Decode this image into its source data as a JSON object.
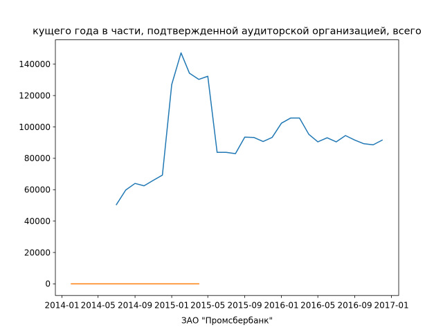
{
  "chart_data": {
    "type": "line",
    "title": "кущего года в части, подтвержденной аудиторской организацией, всего",
    "xlabel": "ЗАО \"Промсбербанк\"",
    "ylabel": "",
    "x_axis": "date",
    "xlim": [
      "2013-12-10",
      "2017-01-25"
    ],
    "ylim": [
      -7400,
      155500
    ],
    "x_ticks": [
      {
        "date": "2014-01-01",
        "label": "2014-01"
      },
      {
        "date": "2014-05-01",
        "label": "2014-05"
      },
      {
        "date": "2014-09-01",
        "label": "2014-09"
      },
      {
        "date": "2015-01-01",
        "label": "2015-01"
      },
      {
        "date": "2015-05-01",
        "label": "2015-05"
      },
      {
        "date": "2015-09-01",
        "label": "2015-09"
      },
      {
        "date": "2016-01-01",
        "label": "2016-01"
      },
      {
        "date": "2016-05-01",
        "label": "2016-05"
      },
      {
        "date": "2016-09-01",
        "label": "2016-09"
      },
      {
        "date": "2017-01-01",
        "label": "2017-01"
      }
    ],
    "y_ticks": [
      0,
      20000,
      40000,
      60000,
      80000,
      100000,
      120000,
      140000
    ],
    "grid": false,
    "series": [
      {
        "name": "",
        "color": "#1f77b4",
        "points": [
          {
            "x": "2014-07-01",
            "y": 50500
          },
          {
            "x": "2014-08-01",
            "y": 59800
          },
          {
            "x": "2014-09-01",
            "y": 64000
          },
          {
            "x": "2014-10-01",
            "y": 62500
          },
          {
            "x": "2014-11-01",
            "y": 66000
          },
          {
            "x": "2014-12-01",
            "y": 69300
          },
          {
            "x": "2015-01-01",
            "y": 127000
          },
          {
            "x": "2015-02-01",
            "y": 147200
          },
          {
            "x": "2015-03-01",
            "y": 134200
          },
          {
            "x": "2015-04-01",
            "y": 130300
          },
          {
            "x": "2015-05-01",
            "y": 132300
          },
          {
            "x": "2015-06-01",
            "y": 83800
          },
          {
            "x": "2015-07-01",
            "y": 83800
          },
          {
            "x": "2015-08-01",
            "y": 83000
          },
          {
            "x": "2015-09-01",
            "y": 93500
          },
          {
            "x": "2015-10-01",
            "y": 93300
          },
          {
            "x": "2015-11-01",
            "y": 90700
          },
          {
            "x": "2015-12-01",
            "y": 93300
          },
          {
            "x": "2016-01-01",
            "y": 102400
          },
          {
            "x": "2016-02-01",
            "y": 105700
          },
          {
            "x": "2016-03-01",
            "y": 105700
          },
          {
            "x": "2016-04-01",
            "y": 95300
          },
          {
            "x": "2016-05-01",
            "y": 90500
          },
          {
            "x": "2016-06-01",
            "y": 93100
          },
          {
            "x": "2016-07-01",
            "y": 90500
          },
          {
            "x": "2016-08-01",
            "y": 94500
          },
          {
            "x": "2016-09-01",
            "y": 91600
          },
          {
            "x": "2016-10-01",
            "y": 89300
          },
          {
            "x": "2016-11-01",
            "y": 88600
          },
          {
            "x": "2016-12-01",
            "y": 91600
          }
        ]
      },
      {
        "name": "",
        "color": "#ff7f0e",
        "points": [
          {
            "x": "2014-02-01",
            "y": 0
          },
          {
            "x": "2014-03-01",
            "y": 0
          },
          {
            "x": "2014-04-01",
            "y": 0
          },
          {
            "x": "2014-05-01",
            "y": 0
          },
          {
            "x": "2014-06-01",
            "y": 0
          },
          {
            "x": "2014-07-01",
            "y": 0
          },
          {
            "x": "2014-08-01",
            "y": 0
          },
          {
            "x": "2014-09-01",
            "y": 0
          },
          {
            "x": "2014-10-01",
            "y": 0
          },
          {
            "x": "2014-11-01",
            "y": 0
          },
          {
            "x": "2014-12-01",
            "y": 0
          },
          {
            "x": "2015-01-01",
            "y": 0
          },
          {
            "x": "2015-02-01",
            "y": 0
          },
          {
            "x": "2015-03-01",
            "y": 0
          },
          {
            "x": "2015-04-01",
            "y": 0
          }
        ]
      }
    ]
  }
}
